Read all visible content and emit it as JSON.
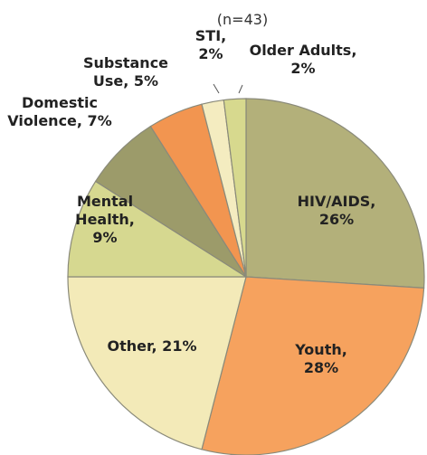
{
  "chart_data": {
    "type": "pie",
    "subtitle": "(n=43)",
    "slices": [
      {
        "name": "HIV/AIDS",
        "value": 26,
        "color": "#b3b07a",
        "label": [
          "HIV/AIDS,",
          "26%"
        ]
      },
      {
        "name": "Youth",
        "value": 28,
        "color": "#f6a25e",
        "label": [
          "Youth,",
          "28%"
        ]
      },
      {
        "name": "Other",
        "value": 21,
        "color": "#f3eab8",
        "label": [
          "Other, 21%"
        ]
      },
      {
        "name": "Mental Health",
        "value": 9,
        "color": "#d6d890",
        "label": [
          "Mental",
          "Health,",
          "9%"
        ]
      },
      {
        "name": "Domestic Violence",
        "value": 7,
        "color": "#9c9b6a",
        "label": [
          "Domestic",
          "Violence, 7%"
        ]
      },
      {
        "name": "Substance Use",
        "value": 5,
        "color": "#f29550",
        "label": [
          "Substance",
          "Use, 5%"
        ]
      },
      {
        "name": "STI",
        "value": 2,
        "color": "#f4ecc0",
        "label": [
          "STI,",
          "2%"
        ]
      },
      {
        "name": "Older Adults",
        "value": 2,
        "color": "#d7d98e",
        "label": [
          "Older Adults,",
          "2%"
        ]
      }
    ]
  }
}
